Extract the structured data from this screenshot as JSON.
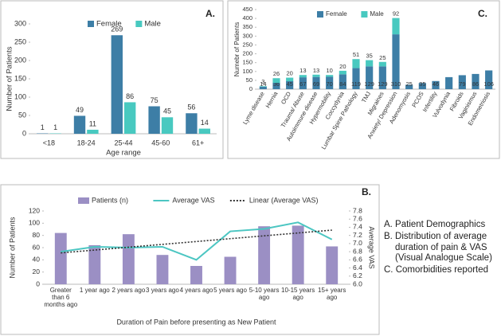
{
  "chart_data": [
    {
      "type": "bar",
      "label": "A.",
      "x_label": "Age range",
      "y_label": "Number of Patients",
      "categories": [
        "<18",
        "18-24",
        "25-44",
        "45-60",
        "61+"
      ],
      "series": [
        {
          "name": "Female",
          "color": "#3d7ea6",
          "values": [
            1,
            49,
            269,
            75,
            56
          ]
        },
        {
          "name": "Male",
          "color": "#48c9c0",
          "values": [
            1,
            11,
            86,
            45,
            14
          ]
        }
      ],
      "ylim": [
        0,
        300
      ],
      "yticks": [
        0,
        50,
        100,
        150,
        200,
        250,
        300
      ]
    },
    {
      "type": "stacked_bar",
      "label": "C.",
      "y_label": "Numebr of Patients",
      "categories": [
        "Lyme disease",
        "Hernia",
        "OCD",
        "Trauma/ Abuse",
        "Autoimmune disease",
        "Hypermobility",
        "Coccydynia",
        "Lumbar Spine Pathology",
        "TMJ",
        "Migraines",
        "Anxiety/ Depression",
        "Adenomyosis",
        "PCOS",
        "Infertility",
        "Vulvodynia",
        "Fibroids",
        "Vaginismus",
        "Endometriosis"
      ],
      "series": [
        {
          "name": "Female",
          "color": "#3d7ea6",
          "values": [
            14,
            36,
            45,
            67,
            69,
            70,
            84,
            119,
            129,
            129,
            310,
            25,
            35,
            46,
            68,
            79,
            86,
            106
          ],
          "value_labels": [
            "14",
            "36",
            "45",
            "67",
            "69",
            "70",
            "84",
            "119",
            "129",
            "129",
            "310",
            "25",
            "35",
            "46",
            null,
            "79",
            "86",
            "106"
          ]
        },
        {
          "name": "Male",
          "color": "#48c9c0",
          "values": [
            3,
            26,
            20,
            13,
            13,
            10,
            20,
            51,
            35,
            25,
            92,
            0,
            0,
            0,
            0,
            0,
            0,
            0
          ],
          "value_labels": [
            "3",
            "26",
            "20",
            "13",
            "13",
            "10",
            "20",
            "51",
            "35",
            "25",
            "92",
            null,
            null,
            null,
            null,
            null,
            null,
            null
          ]
        }
      ],
      "ylim": [
        0,
        450
      ],
      "yticks": [
        0,
        50,
        100,
        150,
        200,
        250,
        300,
        350,
        400,
        450
      ]
    },
    {
      "type": "combo",
      "label": "B.",
      "x_label": "Duration of Pain before presenting as New Patient",
      "y_label": "Number of Patients",
      "y2_label": "Average VAS",
      "categories": [
        "Greater than 6 months ago",
        "1 year ago",
        "2 years ago",
        "3 years ago",
        "4 years ago",
        "5 years ago",
        "5-10 years ago",
        "10-15 years ago",
        "15+ years ago"
      ],
      "series": [
        {
          "name": "Patients (n)",
          "type": "bar",
          "color": "#9b8fc4",
          "values": [
            84,
            64,
            82,
            48,
            30,
            45,
            95,
            96,
            62
          ]
        },
        {
          "name": "Average VAS",
          "type": "line",
          "axis": "y2",
          "color": "#4cc6c2",
          "values": [
            6.8,
            6.92,
            6.9,
            6.92,
            6.6,
            7.3,
            7.36,
            7.52,
            7.1
          ]
        },
        {
          "name": "Linear (Average VAS)",
          "type": "line",
          "axis": "y2",
          "dash": "dotted",
          "color": "#333333",
          "values": [
            6.77,
            6.84,
            6.91,
            6.98,
            7.05,
            7.12,
            7.19,
            7.26,
            7.33
          ]
        }
      ],
      "ylim": [
        0,
        120
      ],
      "yticks": [
        0,
        20,
        40,
        60,
        80,
        100,
        120
      ],
      "y2lim": [
        6.0,
        7.8
      ],
      "y2ticks": [
        {
          "value": 6.0,
          "label": "6.0"
        },
        6.2,
        6.4,
        6.6,
        6.8,
        {
          "value": 7.0,
          "label": "7.0"
        },
        7.2,
        7.4,
        7.6,
        7.8
      ]
    }
  ],
  "notes": [
    "A. Patient Demographics",
    "B. Distribution of average duration of pain & VAS (Visual Analogue Scale)",
    "C. Comorbidities reported"
  ]
}
